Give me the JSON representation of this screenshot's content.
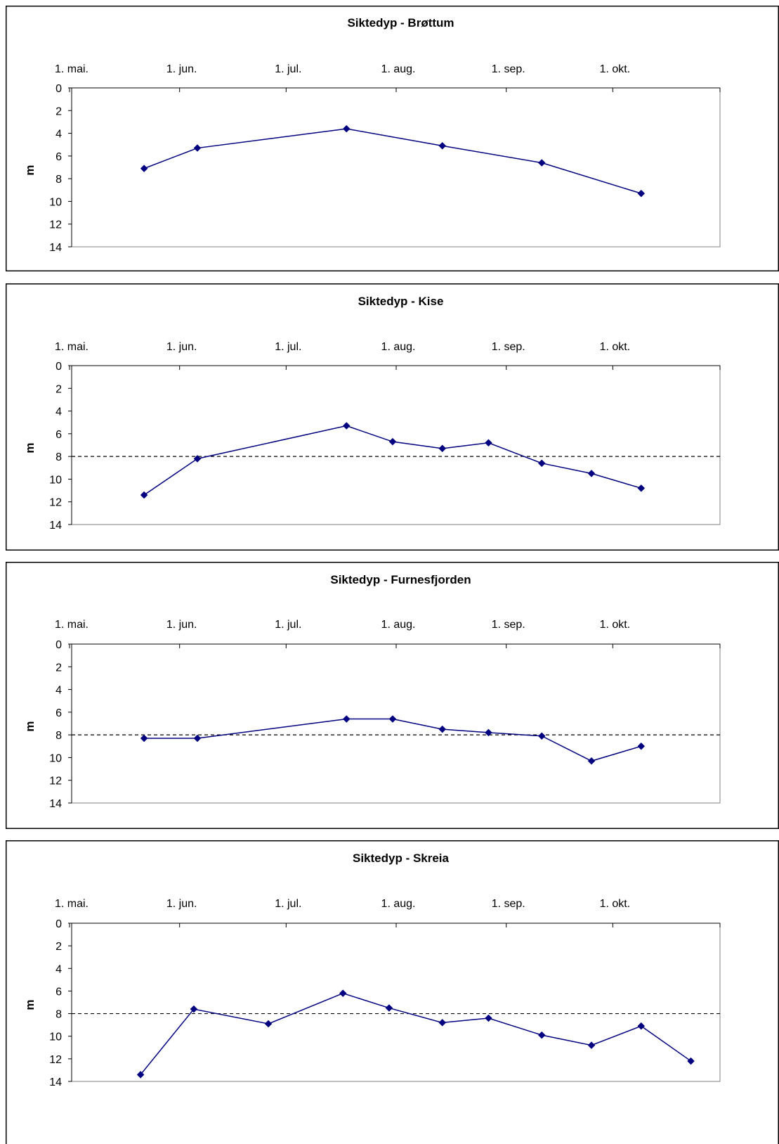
{
  "chart_data": [
    {
      "type": "line",
      "title": "Siktedyp - Brøttum",
      "xlabel": "",
      "ylabel": "m",
      "x_axis": {
        "type": "date",
        "min": "05-01",
        "max": "10-31",
        "position": "top"
      },
      "x_tick_labels": [
        {
          "label": "1. mai.",
          "date": "05-01"
        },
        {
          "label": "1. jun.",
          "date": "06-01"
        },
        {
          "label": "1. jul.",
          "date": "07-01"
        },
        {
          "label": "1. aug.",
          "date": "08-01"
        },
        {
          "label": "1. sep.",
          "date": "09-01"
        },
        {
          "label": "1. okt.",
          "date": "10-01"
        }
      ],
      "y_tick_labels": [
        "0",
        "2",
        "4",
        "6",
        "8",
        "10",
        "12",
        "14"
      ],
      "ylim": [
        0,
        14
      ],
      "y_reversed": true,
      "grid": false,
      "reference_line": null,
      "series": [
        {
          "color": "#000080",
          "marker": "diamond",
          "points": [
            {
              "x": "05-22",
              "y": 7.1
            },
            {
              "x": "06-06",
              "y": 5.3
            },
            {
              "x": "07-18",
              "y": 3.6
            },
            {
              "x": "08-14",
              "y": 5.1
            },
            {
              "x": "09-11",
              "y": 6.6
            },
            {
              "x": "10-09",
              "y": 9.3
            }
          ]
        }
      ]
    },
    {
      "type": "line",
      "title": "Siktedyp - Kise",
      "xlabel": "",
      "ylabel": "m",
      "x_axis": {
        "type": "date",
        "min": "05-01",
        "max": "10-31",
        "position": "top"
      },
      "x_tick_labels": [
        {
          "label": "1. mai.",
          "date": "05-01"
        },
        {
          "label": "1. jun.",
          "date": "06-01"
        },
        {
          "label": "1. jul.",
          "date": "07-01"
        },
        {
          "label": "1. aug.",
          "date": "08-01"
        },
        {
          "label": "1. sep.",
          "date": "09-01"
        },
        {
          "label": "1. okt.",
          "date": "10-01"
        }
      ],
      "y_tick_labels": [
        "0",
        "2",
        "4",
        "6",
        "8",
        "10",
        "12",
        "14"
      ],
      "ylim": [
        0,
        14
      ],
      "y_reversed": true,
      "grid": false,
      "reference_line": {
        "y": 8,
        "style": "dashed"
      },
      "series": [
        {
          "color": "#000080",
          "marker": "diamond",
          "points": [
            {
              "x": "05-22",
              "y": 11.4
            },
            {
              "x": "06-06",
              "y": 8.2
            },
            {
              "x": "07-18",
              "y": 5.3
            },
            {
              "x": "07-31",
              "y": 6.7
            },
            {
              "x": "08-14",
              "y": 7.3
            },
            {
              "x": "08-27",
              "y": 6.8
            },
            {
              "x": "09-11",
              "y": 8.6
            },
            {
              "x": "09-25",
              "y": 9.5
            },
            {
              "x": "10-09",
              "y": 10.8
            }
          ]
        }
      ]
    },
    {
      "type": "line",
      "title": "Siktedyp - Furnesfjorden",
      "xlabel": "",
      "ylabel": "m",
      "x_axis": {
        "type": "date",
        "min": "05-01",
        "max": "10-31",
        "position": "top"
      },
      "x_tick_labels": [
        {
          "label": "1. mai.",
          "date": "05-01"
        },
        {
          "label": "1. jun.",
          "date": "06-01"
        },
        {
          "label": "1. jul.",
          "date": "07-01"
        },
        {
          "label": "1. aug.",
          "date": "08-01"
        },
        {
          "label": "1. sep.",
          "date": "09-01"
        },
        {
          "label": "1. okt.",
          "date": "10-01"
        }
      ],
      "y_tick_labels": [
        "0",
        "2",
        "4",
        "6",
        "8",
        "10",
        "12",
        "14"
      ],
      "ylim": [
        0,
        14
      ],
      "y_reversed": true,
      "grid": false,
      "reference_line": {
        "y": 8,
        "style": "dashed"
      },
      "series": [
        {
          "color": "#000080",
          "marker": "diamond",
          "points": [
            {
              "x": "05-22",
              "y": 8.3
            },
            {
              "x": "06-06",
              "y": 8.3
            },
            {
              "x": "07-18",
              "y": 6.6
            },
            {
              "x": "07-31",
              "y": 6.6
            },
            {
              "x": "08-14",
              "y": 7.5
            },
            {
              "x": "08-27",
              "y": 7.8
            },
            {
              "x": "09-11",
              "y": 8.1
            },
            {
              "x": "09-25",
              "y": 10.3
            },
            {
              "x": "10-09",
              "y": 9.0
            }
          ]
        }
      ]
    },
    {
      "type": "line",
      "title": "Siktedyp - Skreia",
      "xlabel": "",
      "ylabel": "m",
      "x_axis": {
        "type": "date",
        "min": "05-01",
        "max": "10-31",
        "position": "top"
      },
      "x_tick_labels": [
        {
          "label": "1. mai.",
          "date": "05-01"
        },
        {
          "label": "1. jun.",
          "date": "06-01"
        },
        {
          "label": "1. jul.",
          "date": "07-01"
        },
        {
          "label": "1. aug.",
          "date": "08-01"
        },
        {
          "label": "1. sep.",
          "date": "09-01"
        },
        {
          "label": "1. okt.",
          "date": "10-01"
        }
      ],
      "y_tick_labels": [
        "0",
        "2",
        "4",
        "6",
        "8",
        "10",
        "12",
        "14"
      ],
      "ylim": [
        0,
        14
      ],
      "y_reversed": true,
      "grid": false,
      "reference_line": {
        "y": 8,
        "style": "dashed"
      },
      "series": [
        {
          "color": "#000080",
          "marker": "diamond",
          "points": [
            {
              "x": "05-21",
              "y": 13.4
            },
            {
              "x": "06-05",
              "y": 7.6
            },
            {
              "x": "06-26",
              "y": 8.9
            },
            {
              "x": "07-17",
              "y": 6.2
            },
            {
              "x": "07-30",
              "y": 7.5
            },
            {
              "x": "08-14",
              "y": 8.8
            },
            {
              "x": "08-27",
              "y": 8.4
            },
            {
              "x": "09-11",
              "y": 9.9
            },
            {
              "x": "09-25",
              "y": 10.8
            },
            {
              "x": "10-09",
              "y": 9.1
            },
            {
              "x": "10-23",
              "y": 12.2
            }
          ]
        }
      ]
    }
  ]
}
